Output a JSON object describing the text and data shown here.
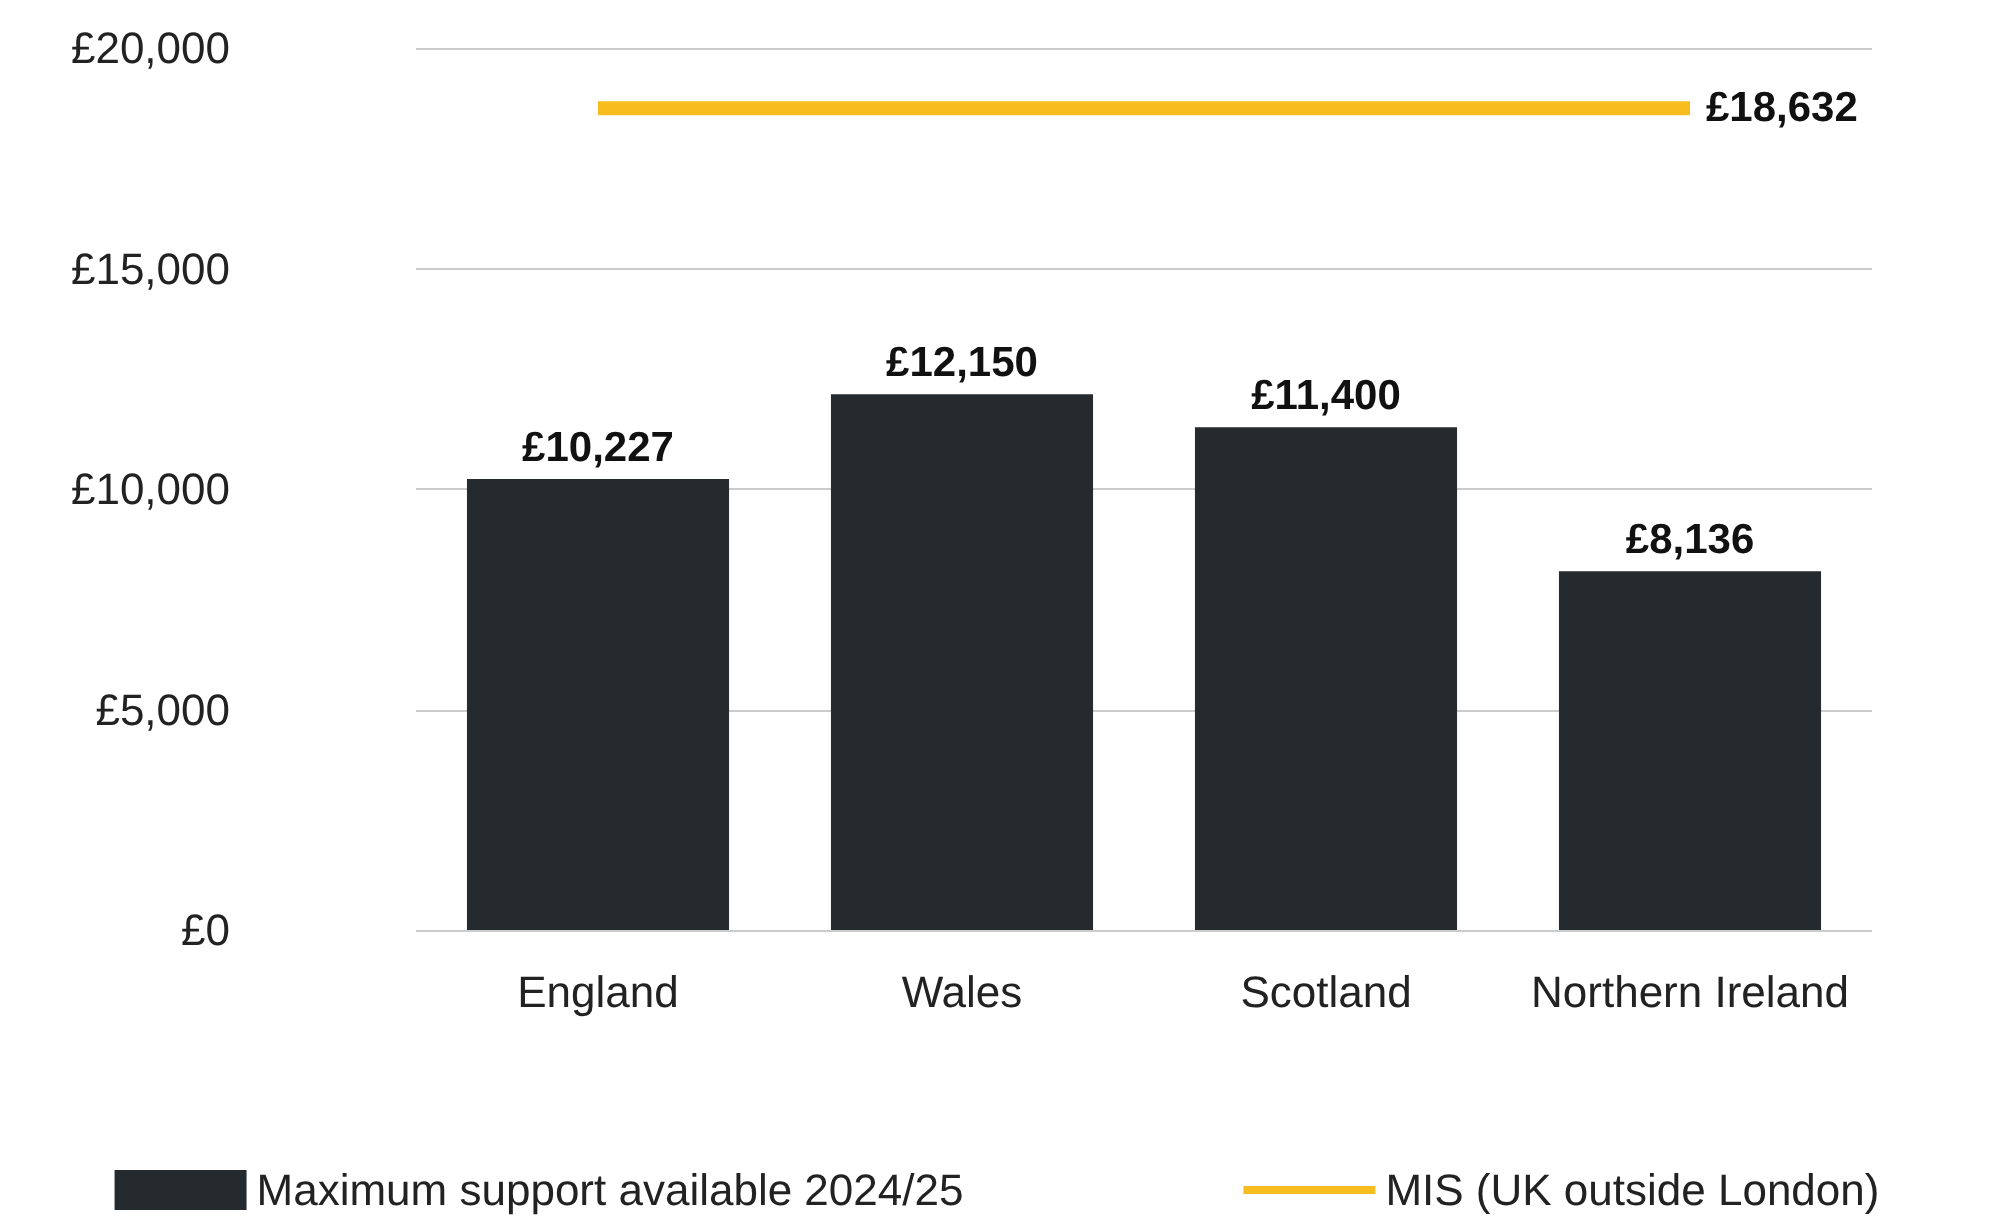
{
  "chart_data": {
    "type": "bar",
    "categories": [
      "England",
      "Wales",
      "Scotland",
      "Northern Ireland"
    ],
    "series": [
      {
        "name": "Maximum support available 2024/25",
        "color": "#252a2e",
        "values": [
          10227,
          12150,
          11400,
          8136
        ],
        "value_labels": [
          "£10,227",
          "£12,150",
          "£11,400",
          "£8,136"
        ]
      },
      {
        "type": "line",
        "name": "MIS (UK outside London)",
        "color": "#f7bd1e",
        "values": [
          18632,
          18632,
          18632,
          18632
        ],
        "value_labels": [
          null,
          null,
          null,
          "£18,632"
        ]
      }
    ],
    "ylim": [
      0,
      20000
    ],
    "yticks": [
      {
        "value": 0,
        "label": "£0"
      },
      {
        "value": 5000,
        "label": "£5,000"
      },
      {
        "value": 10000,
        "label": "£10,000"
      },
      {
        "value": 15000,
        "label": "£15,000"
      },
      {
        "value": 20000,
        "label": "£20,000"
      }
    ],
    "grid": "y",
    "legend": "bottom",
    "marker": "none"
  }
}
